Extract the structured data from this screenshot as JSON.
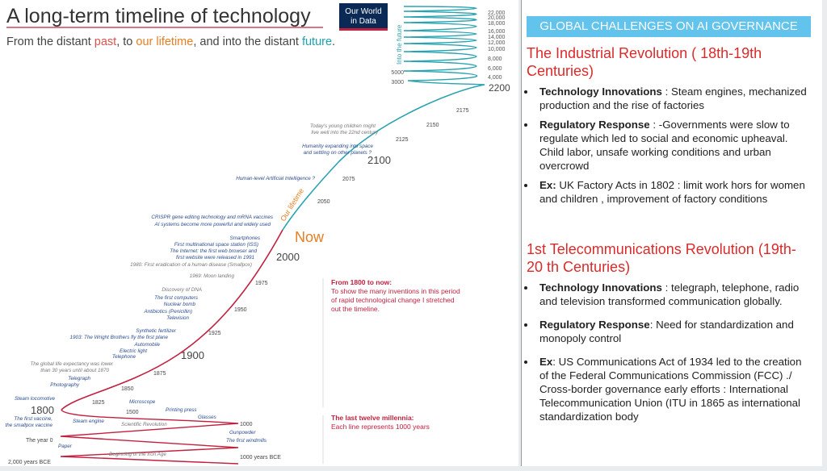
{
  "left": {
    "title": "A long-term timeline of technology",
    "logo": [
      "Our World",
      "in Data"
    ],
    "subtitle_parts": [
      "From the distant ",
      "past",
      ", to ",
      "our lifetime",
      ", and into the distant ",
      "future",
      "."
    ],
    "future_label": "Into the future",
    "far_future_ticks": [
      "22,000",
      "20,000",
      "18,000",
      "16,000",
      "14,000",
      "12,000",
      "10,000",
      "8,000",
      "6,000",
      "4,000",
      "5000",
      "3000"
    ],
    "years": [
      "2200",
      "2175",
      "2150",
      "2125",
      "2100",
      "2075",
      "2050",
      "Now",
      "2000",
      "1975",
      "1950",
      "1925",
      "1900",
      "1875",
      "1850",
      "1825",
      "1800",
      "1500",
      "1000",
      "The year 0",
      "1000 years BCE",
      "2,000 years BCE"
    ],
    "our_lifetime": "Our lifetime",
    "events": [
      "Today's young children might",
      "live well into the 22nd century",
      "Humanity expanding into space",
      "and settling on other planets ?",
      "Human-level Artificial Intelligence ?",
      "CRISPR gene editing technology and mRNA vaccines",
      "AI systems become more powerful and widely used",
      "Smartphones",
      "First multinational space station (ISS)",
      "The Internet: the first web browser and",
      "first website were released in 1991",
      "1980: First eradication of a human disease (Smallpox)",
      "1969: Moon landing",
      "Discovery of DNA",
      "The first computers",
      "Nuclear bomb",
      "Antibiotics (Penicillin)",
      "Television",
      "Synthetic fertilizer",
      "1903: The Wright Brothers fly the first plane",
      "Automobile",
      "Electric light",
      "Telephone",
      "The global life expectancy was lower",
      "than 30 years until about 1870",
      "Telegraph",
      "Photography",
      "Steam locomotive",
      "The first vaccine,",
      "the smallpox vaccine",
      "Steam engine",
      "Microscope",
      "Printing press",
      "Scientific Revolution",
      "Glasses",
      "Gunpowder",
      "The first windmills",
      "Paper",
      "Beginning of the Iron Age"
    ],
    "notes": [
      {
        "heading": "From 1800 to now:",
        "lines": [
          "To show the many inventions in this period",
          "of rapid technological change I stretched",
          "out the timeline."
        ]
      },
      {
        "heading": "The last twelve millennia:",
        "lines": [
          "Each line represents 1000 years"
        ]
      }
    ]
  },
  "right": {
    "header": "GLOBAL CHALLENGES  ON AI GOVERNANCE",
    "sections": [
      {
        "title": "The Industrial Revolution ( 18th-19th Centuries)",
        "bullets": [
          {
            "term": "Technology Innovations",
            "text": " : Steam engines, mechanized production and the rise of factories"
          },
          {
            "term": "Regulatory Response",
            "text": " : -Governments were slow to regulate which led to social and economic upheaval. Child labor, unsafe working conditions and urban overcrowd"
          },
          {
            "term": "Ex:",
            "text": " UK Factory Acts in 1802 : limit work hors for women and children , improvement of factory conditions"
          }
        ]
      },
      {
        "title": "1st Telecommunications Revolution (19th-20 th Centuries)",
        "bullets": [
          {
            "term": "Technology Innovations",
            "text": " : telegraph, telephone, radio and television transformed communication globally."
          },
          {
            "term": "Regulatory Response",
            "text": ": Need for standardization and monopoly control"
          },
          {
            "term": "Ex",
            "text": ": US Communications Act of 1934 led to the creation of the Federal Communications Commission (FCC) ./ Cross-border governance early efforts : International Telecommunication Union (ITU in 1865 as international standardization body"
          }
        ]
      }
    ]
  }
}
